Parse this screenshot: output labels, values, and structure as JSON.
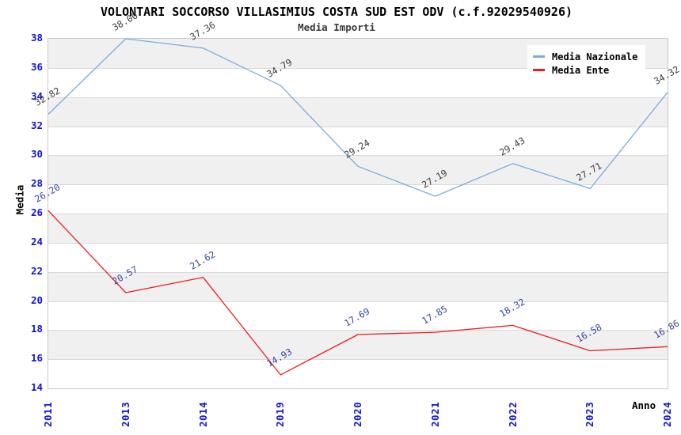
{
  "chart_data": {
    "type": "line",
    "title": "VOLONTARI SOCCORSO VILLASIMIUS COSTA SUD EST ODV (c.f.92029540926)",
    "subtitle": "Media Importi",
    "xlabel": "Anno",
    "ylabel": "Media",
    "x": [
      "2011",
      "2013",
      "2014",
      "2019",
      "2020",
      "2021",
      "2022",
      "2023",
      "2024"
    ],
    "ylim": [
      14,
      38
    ],
    "ytick_step": 2,
    "yticks": [
      14,
      16,
      18,
      20,
      22,
      24,
      26,
      28,
      30,
      32,
      34,
      36,
      38
    ],
    "grid": "horizontal-bands",
    "legend_position": "top-right-inside",
    "series": [
      {
        "name": "Media Nazionale",
        "color": "#7aace0",
        "label_color": "#3c3c3c",
        "values": [
          32.82,
          38.0,
          37.36,
          34.79,
          29.24,
          27.19,
          29.43,
          27.71,
          34.32
        ],
        "labels": [
          "32.82",
          "38.00",
          "37.36",
          "34.79",
          "29.24",
          "27.19",
          "29.43",
          "27.71",
          "34.32"
        ]
      },
      {
        "name": "Media Ente",
        "color": "#ee1c1c",
        "label_color": "#3845a5",
        "values": [
          26.2,
          20.57,
          21.62,
          14.93,
          17.69,
          17.85,
          18.32,
          16.58,
          16.86
        ],
        "labels": [
          "26.20",
          "20.57",
          "21.62",
          "14.93",
          "17.69",
          "17.85",
          "18.32",
          "16.58",
          "16.86"
        ]
      }
    ],
    "colors": {
      "tick_label": "#1414cc",
      "band_gray": "#f0f0f0",
      "band_white": "#ffffff",
      "gridline": "#d9d9d9",
      "plot_border": "#c8c8c8",
      "title": "#000000",
      "subtitle": "#3a3a3a"
    }
  }
}
